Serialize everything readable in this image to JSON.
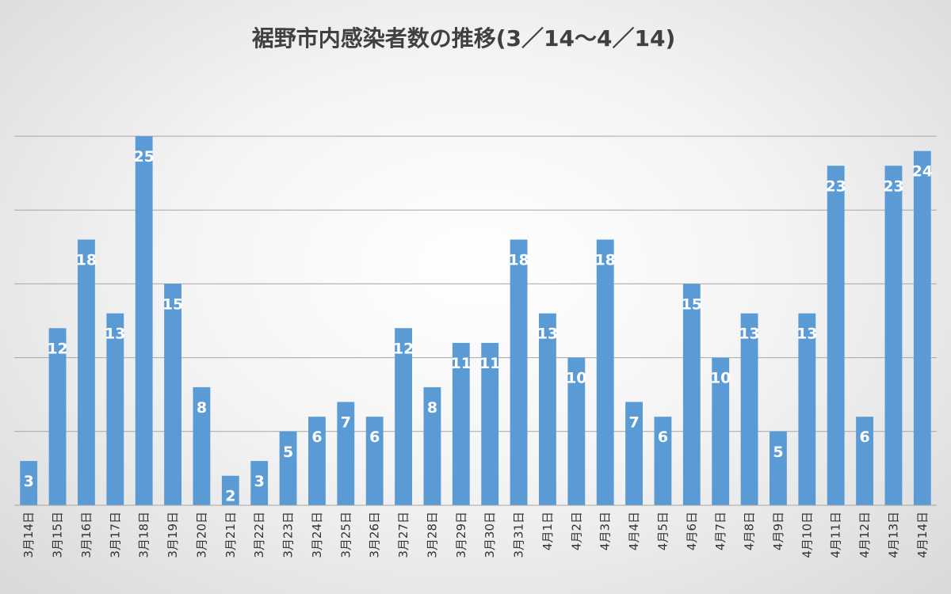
{
  "chart_data": {
    "type": "bar",
    "title": "裾野市内感染者数の推移(3／14〜4／14)",
    "xlabel": "",
    "ylabel": "",
    "ylim": [
      0,
      25
    ],
    "grid": true,
    "gridline_values": [
      5,
      10,
      15,
      20,
      25
    ],
    "legend": "none",
    "bar_color": "#5b9bd5",
    "categories": [
      "3月14日",
      "3月15日",
      "3月16日",
      "3月17日",
      "3月18日",
      "3月19日",
      "3月20日",
      "3月21日",
      "3月22日",
      "3月23日",
      "3月24日",
      "3月25日",
      "3月26日",
      "3月27日",
      "3月28日",
      "3月29日",
      "3月30日",
      "3月31日",
      "4月1日",
      "4月2日",
      "4月3日",
      "4月4日",
      "4月5日",
      "4月6日",
      "4月7日",
      "4月8日",
      "4月9日",
      "4月10日",
      "4月11日",
      "4月12日",
      "4月13日",
      "4月14日"
    ],
    "values": [
      3,
      12,
      18,
      13,
      25,
      15,
      8,
      2,
      3,
      5,
      6,
      7,
      6,
      12,
      8,
      11,
      11,
      18,
      13,
      10,
      18,
      7,
      6,
      15,
      10,
      13,
      5,
      13,
      23,
      6,
      23,
      24
    ]
  }
}
